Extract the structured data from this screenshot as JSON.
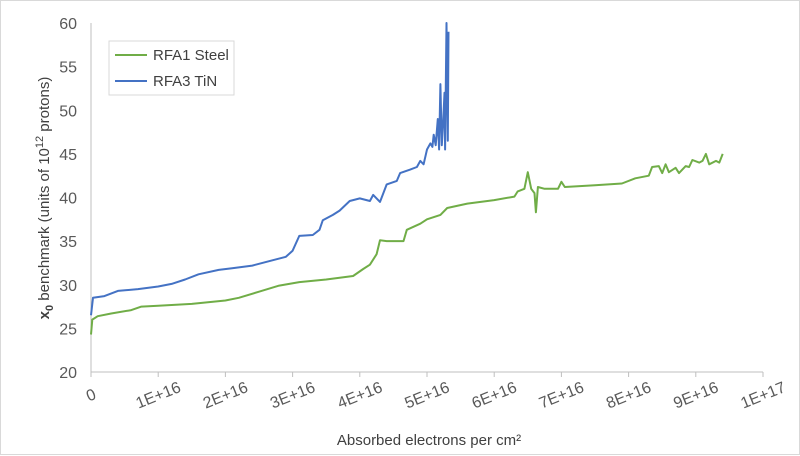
{
  "chart_data": {
    "type": "line",
    "title": "",
    "xlabel": "Absorbed electrons per cm²",
    "ylabel_parts": {
      "x": "x",
      "sub": "0",
      "mid": " benchmark (units of 10",
      "sup": "12",
      "end": " protons)"
    },
    "xlim": [
      0,
      1e+17
    ],
    "ylim": [
      20,
      60
    ],
    "x_ticks": [
      0,
      1e+16,
      2e+16,
      3e+16,
      4e+16,
      5e+16,
      6e+16,
      7e+16,
      8e+16,
      9e+16,
      1e+17
    ],
    "x_tick_labels": [
      "0",
      "1E+16",
      "2E+16",
      "3E+16",
      "4E+16",
      "5E+16",
      "6E+16",
      "7E+16",
      "8E+16",
      "9E+16",
      "1E+17"
    ],
    "y_ticks": [
      20,
      25,
      30,
      35,
      40,
      45,
      50,
      55,
      60
    ],
    "y_tick_labels": [
      "20",
      "25",
      "30",
      "35",
      "40",
      "45",
      "50",
      "55",
      "60"
    ],
    "grid": false,
    "legend_position": "top-left",
    "series": [
      {
        "name": "RFA1 Steel",
        "color": "#70ad47",
        "points": [
          [
            0,
            24.3
          ],
          [
            200000000000000.0,
            26.0
          ],
          [
            1000000000000000.0,
            26.4
          ],
          [
            3000000000000000.0,
            26.7
          ],
          [
            6000000000000000.0,
            27.1
          ],
          [
            7500000000000000.0,
            27.5
          ],
          [
            1e+16,
            27.6
          ],
          [
            1.5e+16,
            27.8
          ],
          [
            2e+16,
            28.2
          ],
          [
            2.2e+16,
            28.5
          ],
          [
            2.5e+16,
            29.2
          ],
          [
            2.8e+16,
            29.9
          ],
          [
            3.1e+16,
            30.3
          ],
          [
            3.5e+16,
            30.6
          ],
          [
            3.9e+16,
            31.0
          ],
          [
            4.05e+16,
            31.8
          ],
          [
            4.15e+16,
            32.3
          ],
          [
            4.25e+16,
            33.5
          ],
          [
            4.3e+16,
            35.1
          ],
          [
            4.4e+16,
            35.0
          ],
          [
            4.65e+16,
            35.0
          ],
          [
            4.7e+16,
            36.3
          ],
          [
            4.9e+16,
            37.0
          ],
          [
            5e+16,
            37.5
          ],
          [
            5.2e+16,
            38.0
          ],
          [
            5.3e+16,
            38.8
          ],
          [
            5.6e+16,
            39.3
          ],
          [
            6e+16,
            39.7
          ],
          [
            6.3e+16,
            40.1
          ],
          [
            6.35e+16,
            40.7
          ],
          [
            6.45e+16,
            41.0
          ],
          [
            6.5e+16,
            42.9
          ],
          [
            6.55e+16,
            41.0
          ],
          [
            6.6e+16,
            40.5
          ],
          [
            6.62e+16,
            38.3
          ],
          [
            6.65e+16,
            41.2
          ],
          [
            6.75e+16,
            41.0
          ],
          [
            6.95e+16,
            41.0
          ],
          [
            7e+16,
            41.8
          ],
          [
            7.05e+16,
            41.2
          ],
          [
            7.5e+16,
            41.4
          ],
          [
            7.9e+16,
            41.6
          ],
          [
            8.1e+16,
            42.2
          ],
          [
            8.3e+16,
            42.5
          ],
          [
            8.35e+16,
            43.5
          ],
          [
            8.45e+16,
            43.6
          ],
          [
            8.5e+16,
            42.8
          ],
          [
            8.55e+16,
            43.8
          ],
          [
            8.6e+16,
            42.9
          ],
          [
            8.7e+16,
            43.4
          ],
          [
            8.75e+16,
            42.8
          ],
          [
            8.85e+16,
            43.6
          ],
          [
            8.9e+16,
            43.5
          ],
          [
            8.95e+16,
            44.3
          ],
          [
            9.05e+16,
            44.0
          ],
          [
            9.1e+16,
            44.2
          ],
          [
            9.15e+16,
            45.0
          ],
          [
            9.2e+16,
            43.8
          ],
          [
            9.3e+16,
            44.2
          ],
          [
            9.35e+16,
            44.0
          ],
          [
            9.4e+16,
            45.0
          ]
        ]
      },
      {
        "name": "RFA3 TiN",
        "color": "#4472c4",
        "points": [
          [
            0,
            26.5
          ],
          [
            300000000000000.0,
            28.5
          ],
          [
            2000000000000000.0,
            28.7
          ],
          [
            4000000000000000.0,
            29.3
          ],
          [
            7000000000000000.0,
            29.5
          ],
          [
            1e+16,
            29.8
          ],
          [
            1.2e+16,
            30.1
          ],
          [
            1.4e+16,
            30.6
          ],
          [
            1.6e+16,
            31.2
          ],
          [
            1.9e+16,
            31.7
          ],
          [
            2.1e+16,
            31.9
          ],
          [
            2.4e+16,
            32.2
          ],
          [
            2.7e+16,
            32.8
          ],
          [
            2.9e+16,
            33.2
          ],
          [
            3e+16,
            33.9
          ],
          [
            3.1e+16,
            35.6
          ],
          [
            3.3e+16,
            35.7
          ],
          [
            3.4e+16,
            36.3
          ],
          [
            3.45e+16,
            37.4
          ],
          [
            3.6e+16,
            38.0
          ],
          [
            3.7e+16,
            38.5
          ],
          [
            3.85e+16,
            39.6
          ],
          [
            4e+16,
            39.9
          ],
          [
            4.15e+16,
            39.6
          ],
          [
            4.2e+16,
            40.3
          ],
          [
            4.3e+16,
            39.5
          ],
          [
            4.4e+16,
            41.5
          ],
          [
            4.55e+16,
            41.9
          ],
          [
            4.6e+16,
            42.8
          ],
          [
            4.75e+16,
            43.2
          ],
          [
            4.85e+16,
            43.5
          ],
          [
            4.9e+16,
            44.2
          ],
          [
            4.95e+16,
            43.8
          ],
          [
            5e+16,
            45.5
          ],
          [
            5.05e+16,
            46.2
          ],
          [
            5.08e+16,
            45.8
          ],
          [
            5.1e+16,
            47.2
          ],
          [
            5.13e+16,
            46.0
          ],
          [
            5.16e+16,
            49.0
          ],
          [
            5.18e+16,
            45.5
          ],
          [
            5.2e+16,
            53.0
          ],
          [
            5.22e+16,
            46.0
          ],
          [
            5.24e+16,
            48.5
          ],
          [
            5.26e+16,
            52.0
          ],
          [
            5.27e+16,
            45.5
          ],
          [
            5.29e+16,
            60.0
          ],
          [
            5.31e+16,
            46.5
          ],
          [
            5.32e+16,
            59.0
          ]
        ]
      }
    ]
  }
}
